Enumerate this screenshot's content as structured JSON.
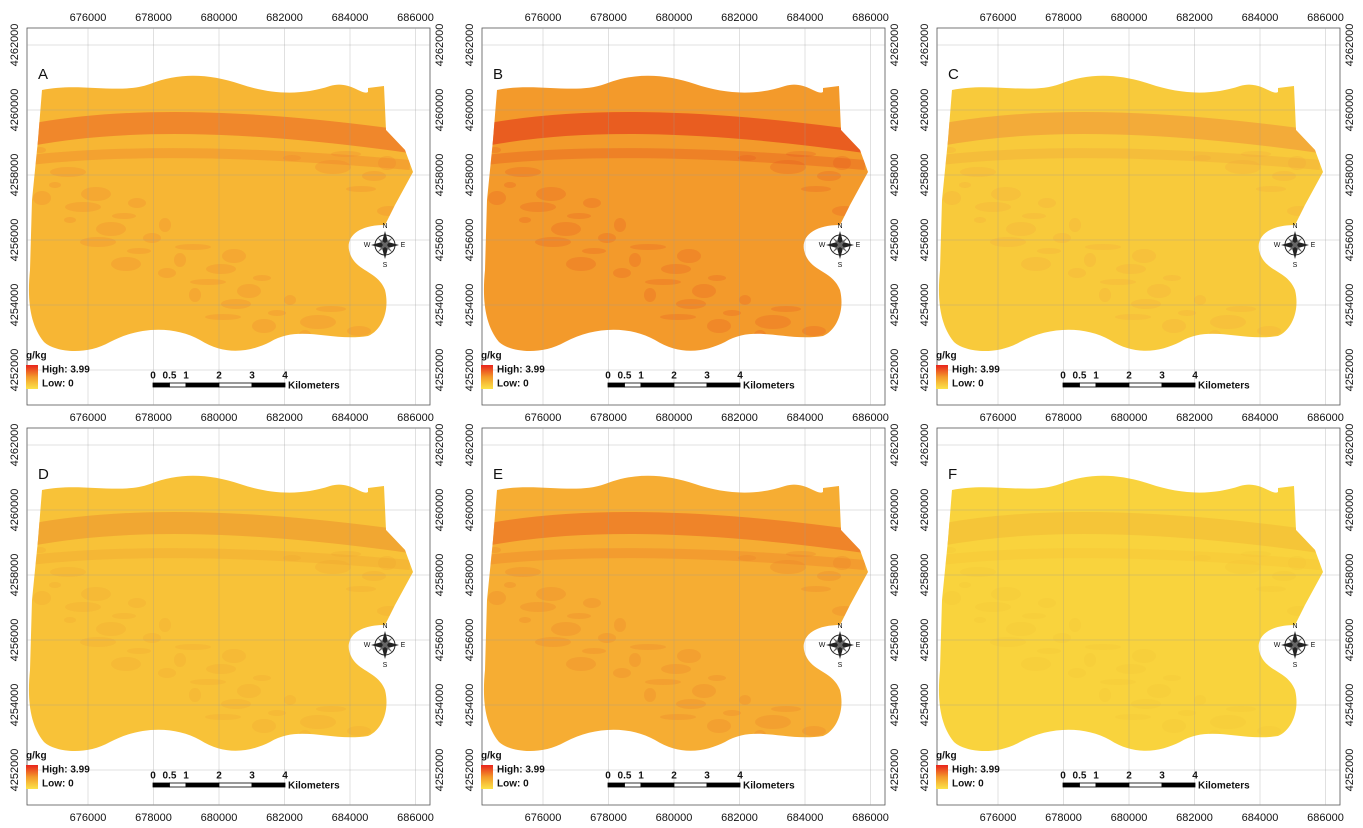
{
  "x_ticks": [
    676000,
    678000,
    680000,
    682000,
    684000,
    686000
  ],
  "y_ticks": [
    4252000,
    4254000,
    4256000,
    4258000,
    4260000,
    4262000
  ],
  "legend": {
    "unit": "g/kg",
    "high": "High: 3.99",
    "low": "Low: 0"
  },
  "scale_bar": {
    "ticks": [
      0,
      0.5,
      1,
      2,
      3,
      4
    ],
    "unit": "Kilometers"
  },
  "compass": {
    "north": "N",
    "south": "S",
    "west": "W",
    "east": "E"
  },
  "panels": [
    {
      "label": "A"
    },
    {
      "label": "B"
    },
    {
      "label": "C"
    },
    {
      "label": "D"
    },
    {
      "label": "E"
    },
    {
      "label": "F"
    }
  ]
}
